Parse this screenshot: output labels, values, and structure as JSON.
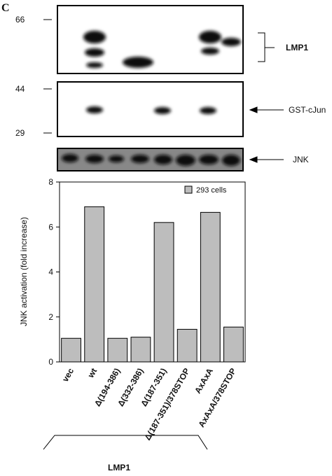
{
  "figure": {
    "panel_label": "C",
    "markers": [
      "66",
      "44",
      "29"
    ],
    "blot_labels": [
      "LMP1",
      "GST-cJun",
      "JNK"
    ],
    "group_label": "LMP1"
  },
  "chart_data": {
    "type": "bar",
    "y_label": "JNK activation (fold increase)",
    "categories": [
      "vec",
      "wt",
      "Δ(194-386)",
      "Δ(332-386)",
      "Δ(187-351)",
      "Δ(187-351)/378STOP",
      "AxAxA",
      "AxAxA/378STOP"
    ],
    "series": [
      {
        "name": "293 cells",
        "color": "#bdbdbd",
        "values": [
          1.05,
          6.9,
          1.05,
          1.1,
          6.2,
          1.45,
          6.65,
          1.55
        ]
      }
    ],
    "ylim": [
      0,
      8
    ],
    "yticks": [
      0,
      2,
      4,
      6,
      8
    ]
  }
}
